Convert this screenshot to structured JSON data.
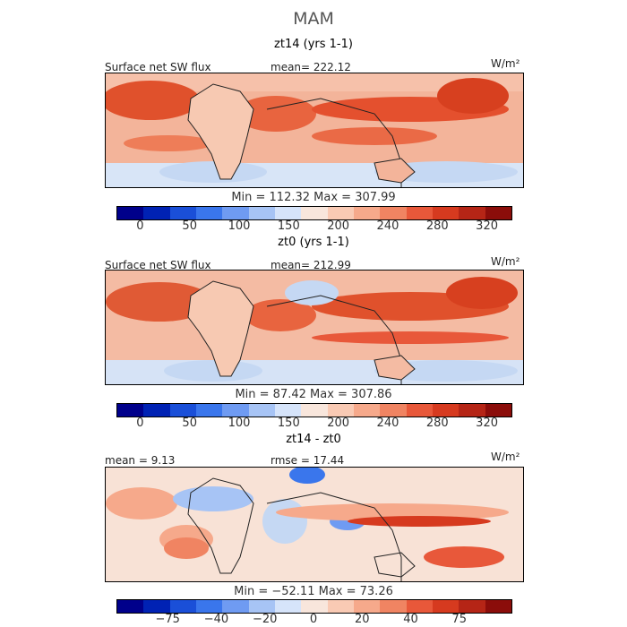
{
  "title": "MAM",
  "panels": [
    {
      "subtitle": "zt14 (yrs 1-1)",
      "field_label": "Surface net SW flux",
      "stat_label": "mean= 222.12",
      "units": "W/m²",
      "min_max": "Min = 112.32 Max = 307.99",
      "colorbar_ticks": [
        "0",
        "50",
        "100",
        "150",
        "200",
        "240",
        "280",
        "320"
      ],
      "colorbar_colors": [
        "#00008b",
        "#0022b4",
        "#1a4fd8",
        "#3a76ec",
        "#6f9bf2",
        "#a7c4f5",
        "#d6e4fa",
        "#f8e6dc",
        "#f9cab4",
        "#f6a98b",
        "#f08462",
        "#e8583a",
        "#d63a1f",
        "#b52516",
        "#8b0d0a"
      ]
    },
    {
      "subtitle": "zt0 (yrs 1-1)",
      "field_label": "Surface net SW flux",
      "stat_label": "mean= 212.99",
      "units": "W/m²",
      "min_max": "Min = 87.42 Max = 307.86",
      "colorbar_ticks": [
        "0",
        "50",
        "100",
        "150",
        "200",
        "240",
        "280",
        "320"
      ],
      "colorbar_colors": [
        "#00008b",
        "#0022b4",
        "#1a4fd8",
        "#3a76ec",
        "#6f9bf2",
        "#a7c4f5",
        "#d6e4fa",
        "#f8e6dc",
        "#f9cab4",
        "#f6a98b",
        "#f08462",
        "#e8583a",
        "#d63a1f",
        "#b52516",
        "#8b0d0a"
      ]
    },
    {
      "subtitle": "zt14 - zt0",
      "field_label": "mean = 9.13",
      "stat_label": "rmse = 17.44",
      "units": "W/m²",
      "min_max": "Min = −52.11 Max = 73.26",
      "colorbar_ticks": [
        "−75",
        "−40",
        "−20",
        "0",
        "20",
        "40",
        "75"
      ],
      "colorbar_colors": [
        "#00008b",
        "#0022b4",
        "#1a4fd8",
        "#3a76ec",
        "#6f9bf2",
        "#a7c4f5",
        "#d6e4fa",
        "#f8e6dc",
        "#f9cab4",
        "#f6a98b",
        "#f08462",
        "#e8583a",
        "#d63a1f",
        "#b52516",
        "#8b0d0a"
      ]
    }
  ]
}
